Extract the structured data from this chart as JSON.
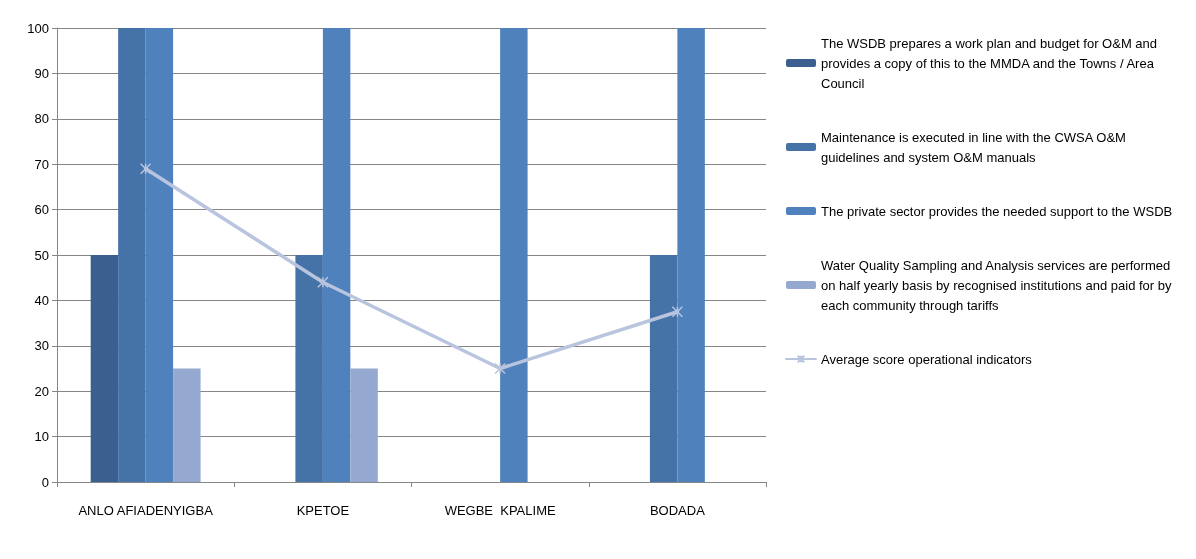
{
  "chart_data": {
    "type": "bar",
    "categories": [
      "ANLO AFIADENYIGBA",
      "KPETOE",
      "WEGBE  KPALIME",
      "BODADA"
    ],
    "series": [
      {
        "name": "The WSDB prepares a work plan and budget for O&M and provides a copy of this to the MMDA and the Towns / Area Council",
        "color": "#3b5f8f",
        "values": [
          50,
          null,
          null,
          null
        ]
      },
      {
        "name": "Maintenance is executed in line with the CWSA O&M guidelines and system O&M manuals",
        "color": "#4573a7",
        "values": [
          100,
          50,
          null,
          50
        ]
      },
      {
        "name": "The private sector provides the needed support to the WSDB",
        "color": "#4f81bd",
        "values": [
          100,
          100,
          100,
          100
        ]
      },
      {
        "name": "Water Quality Sampling and Analysis services are performed on half yearly basis by recognised institutions and paid for by each community through tariffs",
        "color": "#95a9d0",
        "values": [
          25,
          25,
          null,
          null
        ]
      },
      {
        "name": "Average score operational indicators",
        "type": "line",
        "color": "#b9c4de",
        "values": [
          69,
          44,
          25,
          37.5
        ],
        "marker": "cross",
        "line_style": "solid"
      }
    ],
    "ylim": [
      0,
      100
    ],
    "yticks": [
      0,
      10,
      20,
      30,
      40,
      50,
      60,
      70,
      80,
      90,
      100
    ],
    "grid": "y",
    "legend": "right"
  }
}
